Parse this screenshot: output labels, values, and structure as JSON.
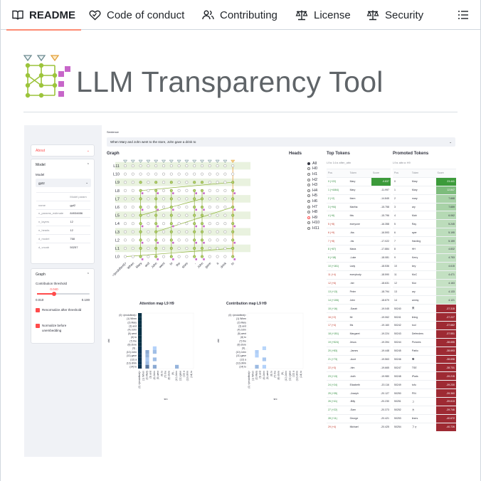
{
  "tabs": [
    {
      "label": "README",
      "icon": "book-icon",
      "active": true
    },
    {
      "label": "Code of conduct",
      "icon": "heart-handshake-icon"
    },
    {
      "label": "Contributing",
      "icon": "people-icon"
    },
    {
      "label": "License",
      "icon": "law-scale-icon"
    },
    {
      "label": "Security",
      "icon": "law-scale-icon"
    }
  ],
  "menu_icon": "list-icon",
  "title": "LLM Transparency Tool",
  "app": {
    "sidebar": {
      "about": "About",
      "model_section": "Model",
      "model_label": "Model",
      "model_value": "gpt2",
      "params_header": "Model param",
      "params": [
        [
          "name",
          "gpt2"
        ],
        [
          "n_params_estimate",
          "84934656"
        ],
        [
          "n_layers",
          "12"
        ],
        [
          "n_heads",
          "12"
        ],
        [
          "d_model",
          "768"
        ],
        [
          "d_vocab",
          "50257"
        ]
      ],
      "graph_section": "Graph",
      "threshold_label": "Contribution threshold",
      "threshold_value": "0.040",
      "threshold_min": "0.010",
      "threshold_max": "0.100",
      "threshold_fraction": 0.33,
      "renormalize": "Renormalize after threshold",
      "normalize": "Normalize before unembedding"
    },
    "sentence_label": "Sentence",
    "sentence": "When Mary and John went to the store, John gave a drink to",
    "graph_label": "Graph",
    "layers": [
      "L11",
      "L10",
      "L9",
      "L8",
      "L7",
      "L6",
      "L5",
      "L4",
      "L3",
      "L2",
      "L1",
      "L0"
    ],
    "tokens": [
      "<|endoftext|>",
      "When",
      "Mary",
      "and",
      "John",
      "went",
      "to",
      "the",
      "store",
      ",",
      "John",
      "gave",
      "a",
      "drink",
      "to"
    ],
    "heads_label": "Heads",
    "heads": [
      "All",
      "H0",
      "H1",
      "H2",
      "H3",
      "H4",
      "H5",
      "H6",
      "H7",
      "H8",
      "H9",
      "H10",
      "H11"
    ],
    "top_tokens": {
      "label": "Top Tokens",
      "sub": "L9 ▸ 14 ▸ after_attn",
      "cols": [
        "Pos",
        "Token",
        "Score"
      ],
      "rows": [
        [
          "0 (+22)",
          "Mary",
          "-9.837"
        ],
        [
          "1 (+4464)",
          "Mary",
          "-11.997"
        ],
        [
          "2 (+2)",
          "them",
          "-14.845"
        ],
        [
          "3 (+94)",
          "Martha",
          "-15.758"
        ],
        [
          "4 (+6)",
          "this",
          "-15.796"
        ],
        [
          "5 (+8)",
          "everyone",
          "-16.358"
        ],
        [
          "6 (+9)",
          "-tha",
          "-16.593"
        ],
        [
          "7 (+8)",
          "-his",
          "-17.022"
        ],
        [
          "8 (+87)",
          "Maria",
          "-17.884"
        ],
        [
          "9 (+18)",
          "-Luke",
          "-18.081"
        ],
        [
          "10 (+161)",
          "Lady",
          "-18.536"
        ],
        [
          "11 (+4)",
          "everybody",
          "-18.590"
        ],
        [
          "12 (+6)",
          "-her",
          "-18.631"
        ],
        [
          "13 (+13)",
          "Peter",
          "-18.794"
        ],
        [
          "14 (+106)",
          "John",
          "-18.879"
        ],
        [
          "15 (+16)",
          "-Sarah",
          "-19.045"
        ],
        [
          "16 (+2)",
          "Mr",
          "-19.062"
        ],
        [
          "17 (+4)",
          "Ms",
          "-19.160"
        ],
        [
          "18 (+151)",
          "Margaret",
          "-19.224"
        ],
        [
          "19 (+524)",
          "Jesus",
          "-19.394"
        ],
        [
          "20 (+83)",
          "-James",
          "-19.448"
        ],
        [
          "21 (+73)",
          "-Aunt",
          "-19.563"
        ],
        [
          "22 (+3)",
          "-him",
          "-19.665"
        ],
        [
          "23 (+13)",
          "-both",
          "-19.980"
        ],
        [
          "24 (+24)",
          "Elizabeth",
          "-20.116"
        ],
        [
          "25 (+35)",
          "-Joseph",
          "-20.127"
        ],
        [
          "26 (+41)",
          "-Billy",
          "-20.230"
        ],
        [
          "27 (+22)",
          "-Sam",
          "-20.373"
        ],
        [
          "28 (+11)",
          "George",
          "-20.421"
        ],
        [
          "29 (+4)",
          "Michael",
          "-20.425"
        ]
      ]
    },
    "promoted_tokens": {
      "label": "Promoted Tokens",
      "sub": "L9 ▸ attn ▸ H9",
      "cols": [
        "Pos",
        "Token",
        "Score"
      ],
      "rows": [
        [
          "0",
          "Mary",
          "23.441"
        ],
        [
          "1",
          "Mary",
          "12.847"
        ],
        [
          "2",
          "mary",
          "7.668"
        ],
        [
          "3",
          "ary",
          "7.659"
        ],
        [
          "4",
          "Mah",
          "6.062"
        ],
        [
          "5",
          "Ray",
          "5.245"
        ],
        [
          "6",
          "ayer",
          "5.195"
        ],
        [
          "7",
          "Harding",
          "5.159"
        ],
        [
          "8",
          "HH",
          "4.832"
        ],
        [
          "9",
          "Kerry",
          "4.753"
        ],
        [
          "10",
          "key",
          "4.615"
        ],
        [
          "11",
          "McC",
          "4.471"
        ],
        [
          "12",
          "Mur",
          "4.163"
        ],
        [
          "13",
          "ary",
          "4.133"
        ],
        [
          "14",
          "ammy",
          "4.121"
        ],
        [
          "50240",
          "美",
          "-37.315"
        ],
        [
          "50241",
          "lining",
          "-37.227"
        ],
        [
          "50242",
          "tool",
          "-37.682"
        ],
        [
          "50243",
          "Defenders",
          "-37.551"
        ],
        [
          "50244",
          "Pictures",
          "-38.655"
        ],
        [
          "50245",
          "Pablo",
          "-38.693"
        ],
        [
          "50246",
          "�",
          "-38.698"
        ],
        [
          "50247",
          "TSE",
          "-38.731"
        ],
        [
          "50248",
          "iPads",
          "-39.215"
        ],
        [
          "50249",
          "tofu",
          "-39.230"
        ],
        [
          "50250",
          "PIN",
          "-39.360"
        ],
        [
          "50251",
          "ュ",
          "-39.613"
        ],
        [
          "50252",
          "カ",
          "-39.746"
        ],
        [
          "50253",
          "liners",
          "-40.672"
        ],
        [
          "50254",
          "フォ",
          "-40.726"
        ]
      ]
    },
    "attention_title": "Attention map L9 H9",
    "contribution_title": "Contribution map L9 H9",
    "map_rows": [
      "(0) <|endoftext|>",
      "(1) When",
      "(2) Mary",
      "(3) and",
      "(4) John",
      "(5) went",
      "(6) to",
      "(7) the",
      "(8) store",
      "(9) ,",
      "(10) John",
      "(11) gave",
      "(12) a",
      "(13) drink",
      "(14) to"
    ],
    "map_y": "dst",
    "map_x": "src",
    "colors": {
      "accent": "#ff4b4b",
      "graph_node_active": "#b5d36b",
      "top_row_green": "#49a344",
      "neg_red": "#a8323a",
      "map_dark": "#0b3a6e"
    }
  }
}
